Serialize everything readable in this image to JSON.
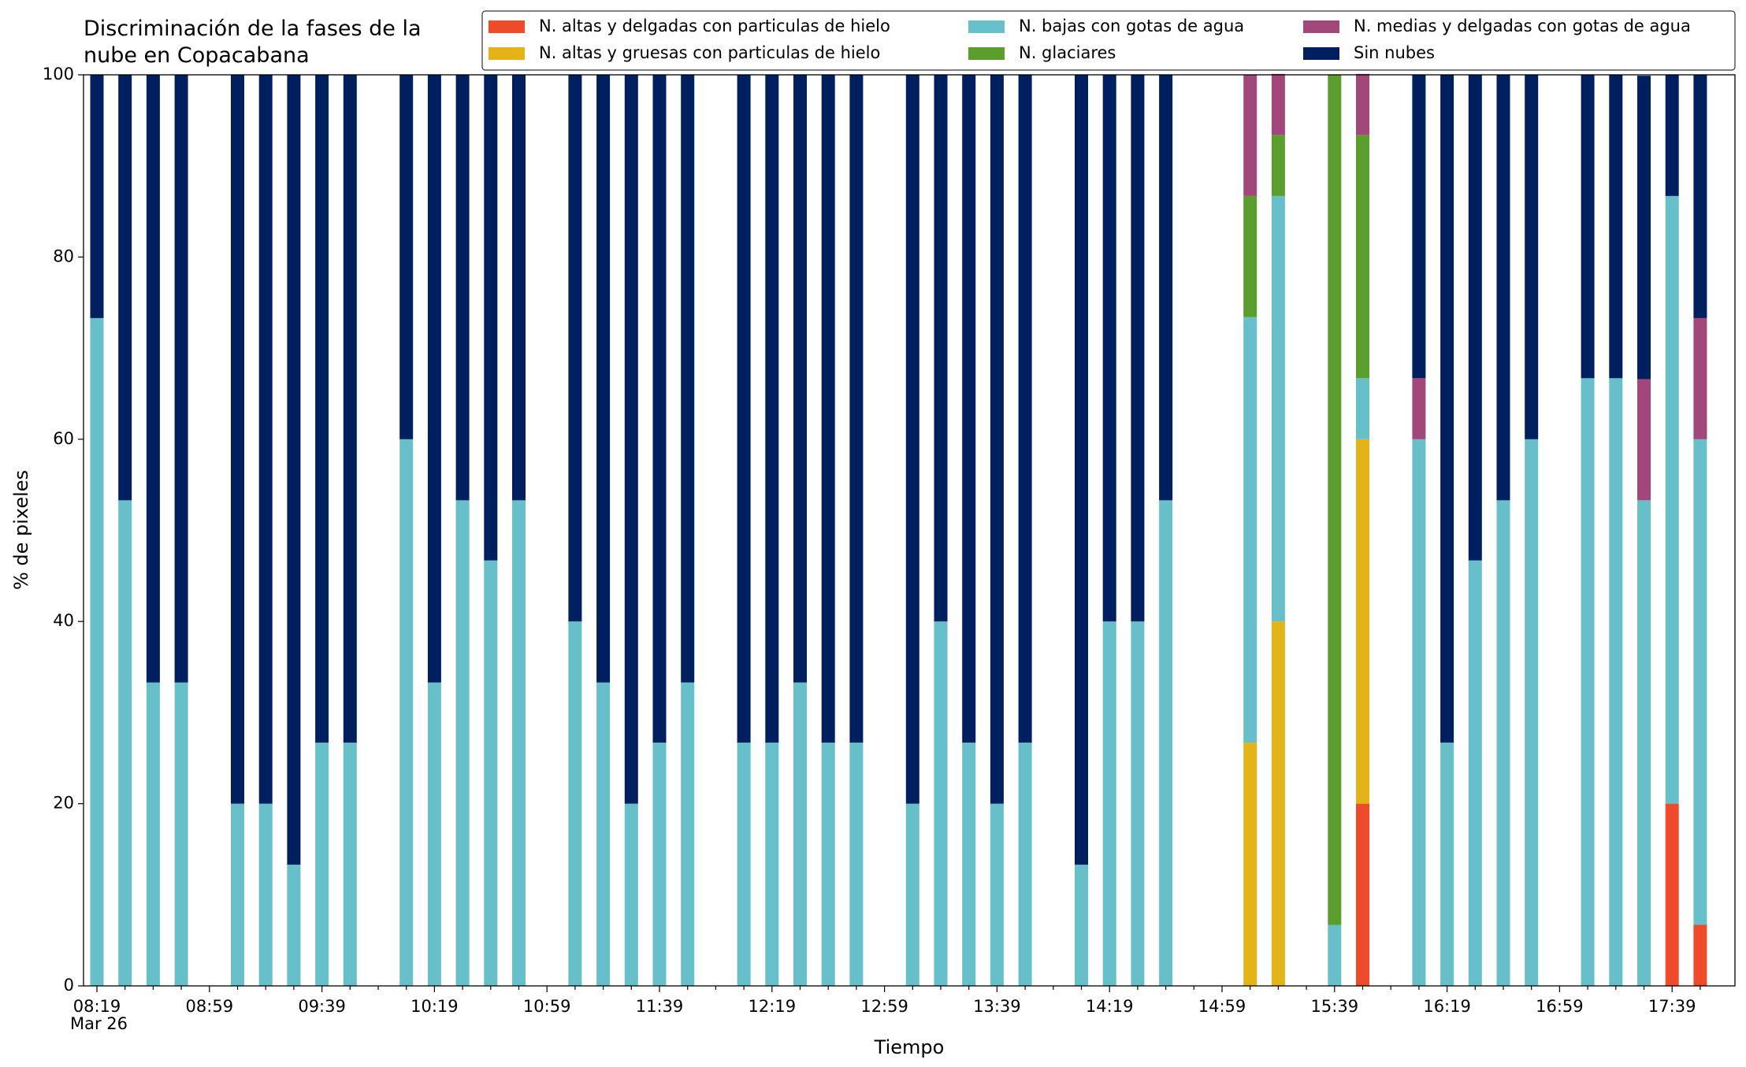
{
  "chart_data": {
    "type": "stacked_bar",
    "title": "Discriminación de la fases de la nube en Copacabana",
    "x_label": "Tiempo",
    "y_label": "% de pixeles",
    "date_label": "Mar 26",
    "categories": [
      "08:19",
      null,
      null,
      null,
      "08:59",
      null,
      null,
      null,
      "09:39",
      null,
      null,
      null,
      "10:19",
      null,
      null,
      null,
      "10:59",
      null,
      null,
      null,
      "11:39",
      null,
      null,
      null,
      "12:19",
      null,
      null,
      null,
      "12:59",
      null,
      null,
      null,
      "13:39",
      null,
      null,
      null,
      "14:19",
      null,
      null,
      null,
      "14:59",
      null,
      null,
      null,
      "15:39",
      null,
      null,
      null,
      "16:19",
      null,
      null,
      null,
      "16:59",
      null,
      null,
      null,
      "17:39",
      null
    ],
    "ylim": [
      0,
      100
    ],
    "yticks": [
      0,
      20,
      40,
      60,
      80,
      100
    ],
    "grid": false,
    "legend": "top-right",
    "series": [
      {
        "name": "N. altas y delgadas con particulas de hielo",
        "color": "#ee4b2b",
        "values": [
          0,
          0,
          0,
          0,
          null,
          0,
          0,
          0,
          0,
          0,
          null,
          0,
          0,
          0,
          0,
          0,
          null,
          0,
          0,
          0,
          0,
          0,
          null,
          0,
          0,
          0,
          0,
          0,
          null,
          0,
          0,
          0,
          0,
          0,
          null,
          0,
          0,
          0,
          0,
          null,
          null,
          0,
          0,
          null,
          0,
          20,
          null,
          0,
          0,
          0,
          0,
          0,
          null,
          0,
          0,
          0,
          20,
          6.7
        ]
      },
      {
        "name": "N. altas y gruesas con particulas de hielo",
        "color": "#e3b317",
        "values": [
          0,
          0,
          0,
          0,
          null,
          0,
          0,
          0,
          0,
          0,
          null,
          0,
          0,
          0,
          0,
          0,
          null,
          0,
          0,
          0,
          0,
          0,
          null,
          0,
          0,
          0,
          0,
          0,
          null,
          0,
          0,
          0,
          0,
          0,
          null,
          0,
          0,
          0,
          0,
          null,
          null,
          26.7,
          40,
          null,
          0,
          40,
          null,
          0,
          0,
          0,
          0,
          0,
          null,
          0,
          0,
          0,
          0,
          0
        ]
      },
      {
        "name": "N. bajas con gotas de agua",
        "color": "#67bfca",
        "values": [
          73.3,
          53.3,
          33.3,
          33.3,
          null,
          20,
          20,
          13.3,
          26.7,
          26.7,
          null,
          60,
          33.3,
          53.3,
          46.7,
          53.3,
          null,
          40,
          33.3,
          20,
          26.7,
          33.3,
          null,
          26.7,
          26.7,
          33.3,
          26.7,
          26.7,
          null,
          20,
          40,
          26.7,
          20,
          26.7,
          null,
          13.3,
          40,
          40,
          53.3,
          null,
          null,
          46.7,
          46.7,
          null,
          6.7,
          6.7,
          null,
          60,
          26.7,
          46.7,
          53.3,
          60,
          null,
          66.7,
          66.7,
          53.3,
          66.7,
          53.3
        ]
      },
      {
        "name": "N. glaciares",
        "color": "#5c9e2d",
        "values": [
          0,
          0,
          0,
          0,
          null,
          0,
          0,
          0,
          0,
          0,
          null,
          0,
          0,
          0,
          0,
          0,
          null,
          0,
          0,
          0,
          0,
          0,
          null,
          0,
          0,
          0,
          0,
          0,
          null,
          0,
          0,
          0,
          0,
          0,
          null,
          0,
          0,
          0,
          0,
          null,
          null,
          13.3,
          6.7,
          null,
          93.3,
          26.7,
          null,
          0,
          0,
          0,
          0,
          0,
          null,
          0,
          0,
          0,
          0,
          0
        ]
      },
      {
        "name": "N. medias y delgadas con gotas de agua",
        "color": "#a2477a",
        "values": [
          0,
          0,
          0,
          0,
          null,
          0,
          0,
          0,
          0,
          0,
          null,
          0,
          0,
          0,
          0,
          0,
          null,
          0,
          0,
          0,
          0,
          0,
          null,
          0,
          0,
          0,
          0,
          0,
          null,
          0,
          0,
          0,
          0,
          0,
          null,
          0,
          0,
          0,
          0,
          null,
          null,
          13.3,
          6.7,
          null,
          0,
          6.7,
          null,
          6.7,
          0,
          0,
          0,
          0,
          null,
          0,
          0,
          13.3,
          0,
          13.3
        ]
      },
      {
        "name": "Sin nubes",
        "color": "#001f5f",
        "values": [
          26.7,
          46.7,
          66.7,
          66.7,
          null,
          80,
          80,
          86.7,
          73.3,
          73.3,
          null,
          40,
          66.7,
          46.7,
          53.3,
          46.7,
          null,
          60,
          66.7,
          80,
          73.3,
          66.7,
          null,
          73.3,
          73.3,
          66.7,
          73.3,
          73.3,
          null,
          80,
          60,
          73.3,
          80,
          73.3,
          null,
          86.7,
          60,
          60,
          46.7,
          null,
          null,
          0,
          0,
          null,
          0,
          0,
          null,
          33.3,
          73.3,
          53.3,
          46.7,
          40,
          null,
          33.3,
          33.3,
          33.3,
          13.3,
          26.7
        ]
      }
    ]
  }
}
